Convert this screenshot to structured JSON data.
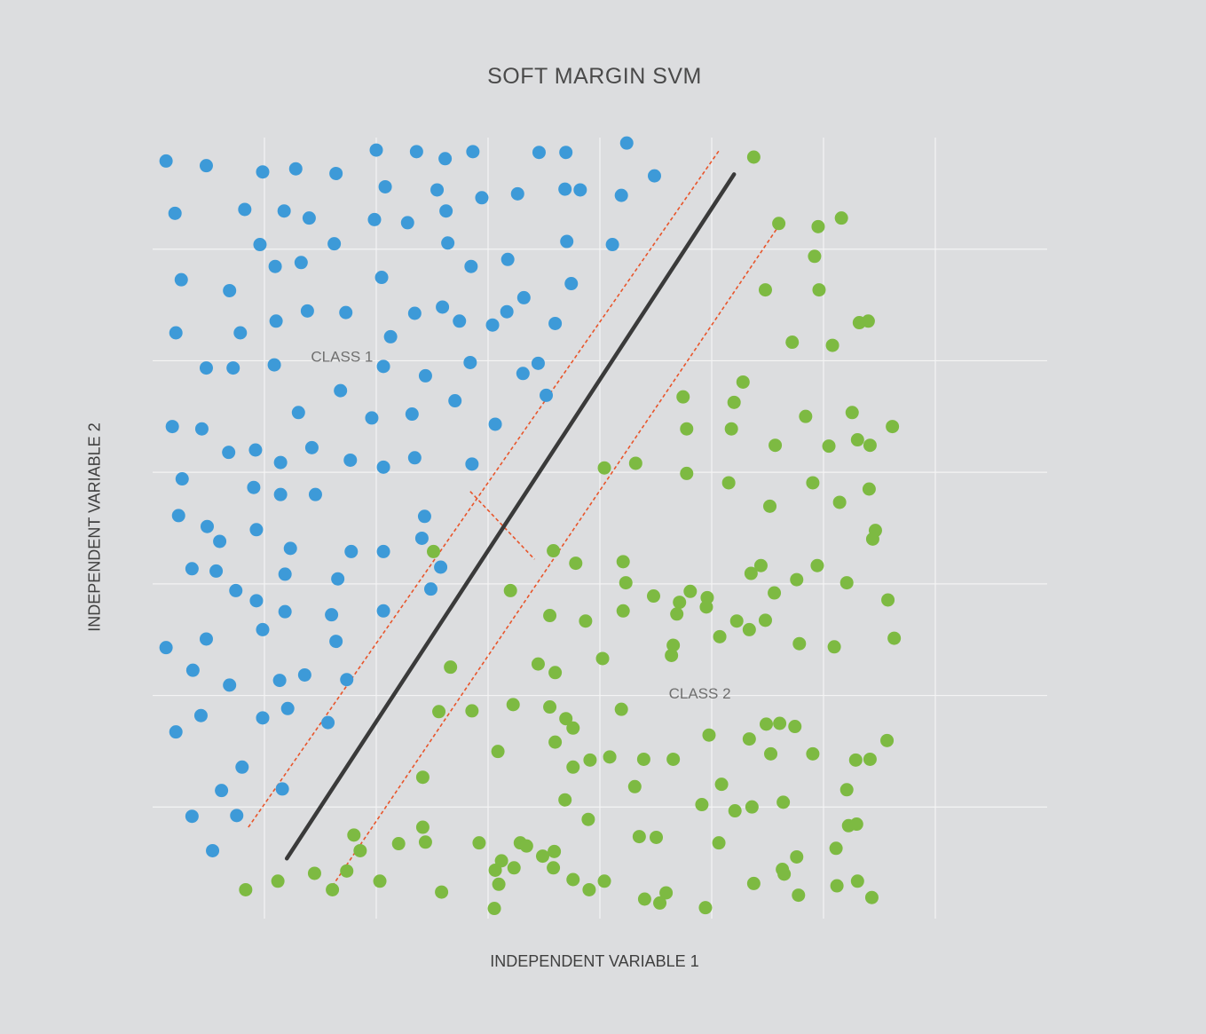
{
  "chart_data": {
    "type": "scatter",
    "title": "SOFT MARGIN SVM",
    "xlabel": "INDEPENDENT VARIABLE 1",
    "ylabel": "INDEPENDENT VARIABLE 2",
    "xlim": [
      0,
      10
    ],
    "ylim": [
      0,
      10
    ],
    "grid": true,
    "tick_labels_shown": false,
    "colors": {
      "background": "#dcdddf",
      "grid": "#f4f4f4",
      "class1": "#3d9ad8",
      "class2": "#7dba42",
      "boundary": "#3a3a3a",
      "margin": "#e8552b"
    },
    "annotations": [
      {
        "text": "CLASS 1",
        "x": 1.77,
        "y": 7.13
      },
      {
        "text": "CLASS 2",
        "x": 5.77,
        "y": 2.82
      }
    ],
    "decision_boundary": {
      "x": [
        1.5,
        6.5
      ],
      "y": [
        0.77,
        9.53
      ]
    },
    "margins": [
      {
        "x": [
          1.07,
          6.33
        ],
        "y": [
          1.17,
          9.83
        ]
      },
      {
        "x": [
          1.97,
          7.0
        ],
        "y": [
          0.35,
          8.87
        ]
      }
    ],
    "margin_indicator": {
      "x": [
        3.55,
        4.27
      ],
      "y": [
        5.47,
        4.6
      ]
    },
    "series": [
      {
        "name": "CLASS 1",
        "points": [
          [
            0.15,
            9.7
          ],
          [
            0.6,
            9.64
          ],
          [
            1.23,
            9.56
          ],
          [
            1.6,
            9.6
          ],
          [
            2.05,
            9.54
          ],
          [
            2.5,
            9.84
          ],
          [
            2.95,
            9.82
          ],
          [
            3.27,
            9.73
          ],
          [
            3.58,
            9.82
          ],
          [
            4.32,
            9.81
          ],
          [
            4.62,
            9.81
          ],
          [
            5.3,
            9.93
          ],
          [
            5.61,
            9.51
          ],
          [
            0.25,
            9.03
          ],
          [
            1.03,
            9.08
          ],
          [
            1.47,
            9.06
          ],
          [
            1.75,
            8.97
          ],
          [
            2.48,
            8.95
          ],
          [
            2.85,
            8.91
          ],
          [
            3.28,
            9.06
          ],
          [
            3.18,
            9.33
          ],
          [
            3.68,
            9.23
          ],
          [
            4.08,
            9.28
          ],
          [
            4.61,
            9.34
          ],
          [
            4.78,
            9.33
          ],
          [
            5.24,
            9.26
          ],
          [
            2.6,
            9.37
          ],
          [
            1.2,
            8.63
          ],
          [
            2.03,
            8.64
          ],
          [
            3.3,
            8.65
          ],
          [
            3.56,
            8.35
          ],
          [
            3.97,
            8.44
          ],
          [
            4.63,
            8.67
          ],
          [
            5.14,
            8.63
          ],
          [
            0.32,
            8.18
          ],
          [
            0.86,
            8.04
          ],
          [
            1.37,
            8.35
          ],
          [
            1.66,
            8.4
          ],
          [
            2.56,
            8.21
          ],
          [
            4.15,
            7.95
          ],
          [
            4.68,
            8.13
          ],
          [
            0.26,
            7.5
          ],
          [
            0.98,
            7.5
          ],
          [
            1.38,
            7.65
          ],
          [
            1.73,
            7.78
          ],
          [
            2.16,
            7.76
          ],
          [
            2.66,
            7.45
          ],
          [
            2.93,
            7.75
          ],
          [
            3.24,
            7.83
          ],
          [
            3.43,
            7.65
          ],
          [
            3.8,
            7.6
          ],
          [
            3.96,
            7.77
          ],
          [
            4.5,
            7.62
          ],
          [
            0.6,
            7.05
          ],
          [
            0.9,
            7.05
          ],
          [
            1.36,
            7.09
          ],
          [
            2.58,
            7.07
          ],
          [
            3.05,
            6.95
          ],
          [
            3.55,
            7.12
          ],
          [
            4.14,
            6.98
          ],
          [
            4.31,
            7.11
          ],
          [
            4.4,
            6.7
          ],
          [
            2.1,
            6.76
          ],
          [
            1.63,
            6.48
          ],
          [
            3.38,
            6.63
          ],
          [
            2.45,
            6.41
          ],
          [
            2.9,
            6.46
          ],
          [
            3.83,
            6.33
          ],
          [
            0.22,
            6.3
          ],
          [
            0.55,
            6.27
          ],
          [
            0.85,
            5.97
          ],
          [
            1.15,
            6.0
          ],
          [
            1.43,
            5.84
          ],
          [
            1.78,
            6.03
          ],
          [
            2.21,
            5.87
          ],
          [
            2.58,
            5.78
          ],
          [
            2.93,
            5.9
          ],
          [
            3.57,
            5.82
          ],
          [
            0.33,
            5.63
          ],
          [
            1.13,
            5.52
          ],
          [
            1.43,
            5.43
          ],
          [
            1.82,
            5.43
          ],
          [
            3.04,
            5.15
          ],
          [
            0.29,
            5.16
          ],
          [
            0.61,
            5.02
          ],
          [
            0.75,
            4.83
          ],
          [
            1.16,
            4.98
          ],
          [
            1.54,
            4.74
          ],
          [
            2.22,
            4.7
          ],
          [
            2.58,
            4.7
          ],
          [
            3.01,
            4.87
          ],
          [
            3.22,
            4.5
          ],
          [
            2.07,
            4.35
          ],
          [
            0.44,
            4.48
          ],
          [
            0.71,
            4.45
          ],
          [
            0.93,
            4.2
          ],
          [
            1.16,
            4.07
          ],
          [
            1.48,
            4.41
          ],
          [
            3.11,
            4.22
          ],
          [
            1.48,
            3.93
          ],
          [
            2.0,
            3.89
          ],
          [
            2.58,
            3.94
          ],
          [
            0.6,
            3.58
          ],
          [
            1.23,
            3.7
          ],
          [
            2.05,
            3.55
          ],
          [
            0.15,
            3.47
          ],
          [
            0.45,
            3.18
          ],
          [
            0.86,
            2.99
          ],
          [
            1.42,
            3.05
          ],
          [
            1.7,
            3.12
          ],
          [
            2.17,
            3.06
          ],
          [
            0.26,
            2.39
          ],
          [
            0.54,
            2.6
          ],
          [
            1.23,
            2.57
          ],
          [
            1.51,
            2.69
          ],
          [
            1.96,
            2.51
          ],
          [
            1.0,
            1.94
          ],
          [
            1.45,
            1.66
          ],
          [
            0.77,
            1.64
          ],
          [
            0.44,
            1.31
          ],
          [
            0.94,
            1.32
          ],
          [
            0.67,
            0.87
          ]
        ]
      },
      {
        "name": "CLASS 2",
        "points": [
          [
            7.0,
            8.9
          ],
          [
            7.7,
            8.97
          ],
          [
            7.4,
            8.48
          ],
          [
            6.85,
            8.05
          ],
          [
            7.45,
            8.05
          ],
          [
            8.0,
            7.65
          ],
          [
            7.6,
            7.34
          ],
          [
            7.15,
            7.38
          ],
          [
            6.6,
            6.87
          ],
          [
            7.3,
            6.43
          ],
          [
            5.93,
            6.68
          ],
          [
            6.5,
            6.61
          ],
          [
            7.9,
            7.63
          ],
          [
            5.97,
            6.27
          ],
          [
            6.47,
            6.27
          ],
          [
            6.96,
            6.06
          ],
          [
            7.56,
            6.05
          ],
          [
            7.82,
            6.48
          ],
          [
            7.88,
            6.13
          ],
          [
            8.02,
            6.06
          ],
          [
            8.27,
            6.3
          ],
          [
            5.4,
            5.83
          ],
          [
            5.05,
            5.77
          ],
          [
            5.97,
            5.7
          ],
          [
            6.44,
            5.58
          ],
          [
            6.9,
            5.28
          ],
          [
            7.38,
            5.58
          ],
          [
            7.68,
            5.33
          ],
          [
            8.01,
            5.5
          ],
          [
            8.08,
            4.97
          ],
          [
            4.73,
            4.55
          ],
          [
            5.26,
            4.57
          ],
          [
            5.6,
            4.13
          ],
          [
            5.89,
            4.05
          ],
          [
            6.69,
            4.42
          ],
          [
            7.43,
            4.52
          ],
          [
            7.2,
            4.34
          ],
          [
            8.05,
            4.86
          ],
          [
            7.76,
            4.3
          ],
          [
            6.8,
            4.52
          ],
          [
            6.34,
            3.61
          ],
          [
            6.67,
            3.7
          ],
          [
            6.95,
            4.17
          ],
          [
            5.86,
            3.9
          ],
          [
            6.19,
            3.99
          ],
          [
            5.29,
            4.3
          ],
          [
            3.14,
            4.7
          ],
          [
            4.0,
            4.2
          ],
          [
            6.2,
            4.11
          ],
          [
            4.44,
            3.88
          ],
          [
            5.26,
            3.94
          ],
          [
            4.5,
            3.15
          ],
          [
            4.84,
            3.81
          ],
          [
            4.48,
            4.71
          ],
          [
            3.33,
            3.22
          ],
          [
            4.31,
            3.26
          ],
          [
            5.03,
            3.33
          ],
          [
            5.8,
            3.37
          ],
          [
            5.82,
            3.5
          ],
          [
            6.01,
            4.19
          ],
          [
            6.53,
            3.81
          ],
          [
            6.85,
            3.82
          ],
          [
            7.23,
            3.52
          ],
          [
            7.62,
            3.48
          ],
          [
            8.22,
            4.08
          ],
          [
            8.29,
            3.59
          ],
          [
            3.2,
            2.65
          ],
          [
            3.57,
            2.66
          ],
          [
            4.03,
            2.74
          ],
          [
            4.44,
            2.71
          ],
          [
            4.62,
            2.56
          ],
          [
            4.7,
            2.44
          ],
          [
            5.24,
            2.68
          ],
          [
            5.82,
            2.04
          ],
          [
            6.22,
            2.35
          ],
          [
            6.67,
            2.3
          ],
          [
            7.01,
            2.5
          ],
          [
            7.18,
            2.46
          ],
          [
            6.86,
            2.49
          ],
          [
            7.38,
            2.11
          ],
          [
            7.86,
            2.03
          ],
          [
            8.21,
            2.28
          ],
          [
            3.02,
            1.81
          ],
          [
            3.86,
            2.14
          ],
          [
            4.5,
            2.26
          ],
          [
            4.89,
            2.03
          ],
          [
            5.39,
            1.69
          ],
          [
            4.7,
            1.94
          ],
          [
            5.49,
            2.04
          ],
          [
            5.11,
            2.07
          ],
          [
            6.14,
            1.46
          ],
          [
            6.91,
            2.11
          ],
          [
            7.05,
            1.49
          ],
          [
            7.76,
            1.65
          ],
          [
            8.02,
            2.04
          ],
          [
            7.78,
            1.19
          ],
          [
            7.87,
            1.21
          ],
          [
            6.36,
            1.72
          ],
          [
            6.51,
            1.38
          ],
          [
            4.61,
            1.52
          ],
          [
            4.87,
            1.27
          ],
          [
            3.65,
            0.97
          ],
          [
            4.11,
            0.97
          ],
          [
            6.33,
            0.97
          ],
          [
            6.7,
            1.43
          ],
          [
            5.44,
            1.05
          ],
          [
            5.63,
            1.04
          ],
          [
            6.72,
            0.45
          ],
          [
            7.2,
            0.79
          ],
          [
            7.06,
            0.57
          ],
          [
            7.64,
            0.9
          ],
          [
            7.04,
            0.63
          ],
          [
            4.88,
            0.37
          ],
          [
            4.7,
            0.5
          ],
          [
            5.05,
            0.48
          ],
          [
            5.5,
            0.25
          ],
          [
            5.74,
            0.33
          ],
          [
            5.67,
            0.2
          ],
          [
            6.18,
            0.14
          ],
          [
            7.22,
            0.3
          ],
          [
            7.88,
            0.48
          ],
          [
            8.04,
            0.27
          ],
          [
            7.65,
            0.42
          ],
          [
            2.25,
            1.07
          ],
          [
            3.02,
            1.17
          ],
          [
            3.87,
            0.44
          ],
          [
            2.32,
            0.87
          ],
          [
            2.75,
            0.96
          ],
          [
            1.04,
            0.37
          ],
          [
            2.17,
            0.61
          ],
          [
            3.23,
            0.34
          ],
          [
            3.05,
            0.98
          ],
          [
            3.83,
            0.62
          ],
          [
            2.54,
            0.48
          ],
          [
            3.9,
            0.74
          ],
          [
            3.82,
            0.13
          ],
          [
            4.48,
            0.65
          ],
          [
            4.36,
            0.8
          ],
          [
            4.04,
            0.65
          ],
          [
            4.49,
            0.86
          ],
          [
            1.4,
            0.48
          ],
          [
            1.81,
            0.58
          ],
          [
            2.01,
            0.37
          ],
          [
            4.18,
            0.93
          ],
          [
            6.72,
            9.75
          ],
          [
            7.44,
            8.86
          ]
        ]
      }
    ]
  }
}
